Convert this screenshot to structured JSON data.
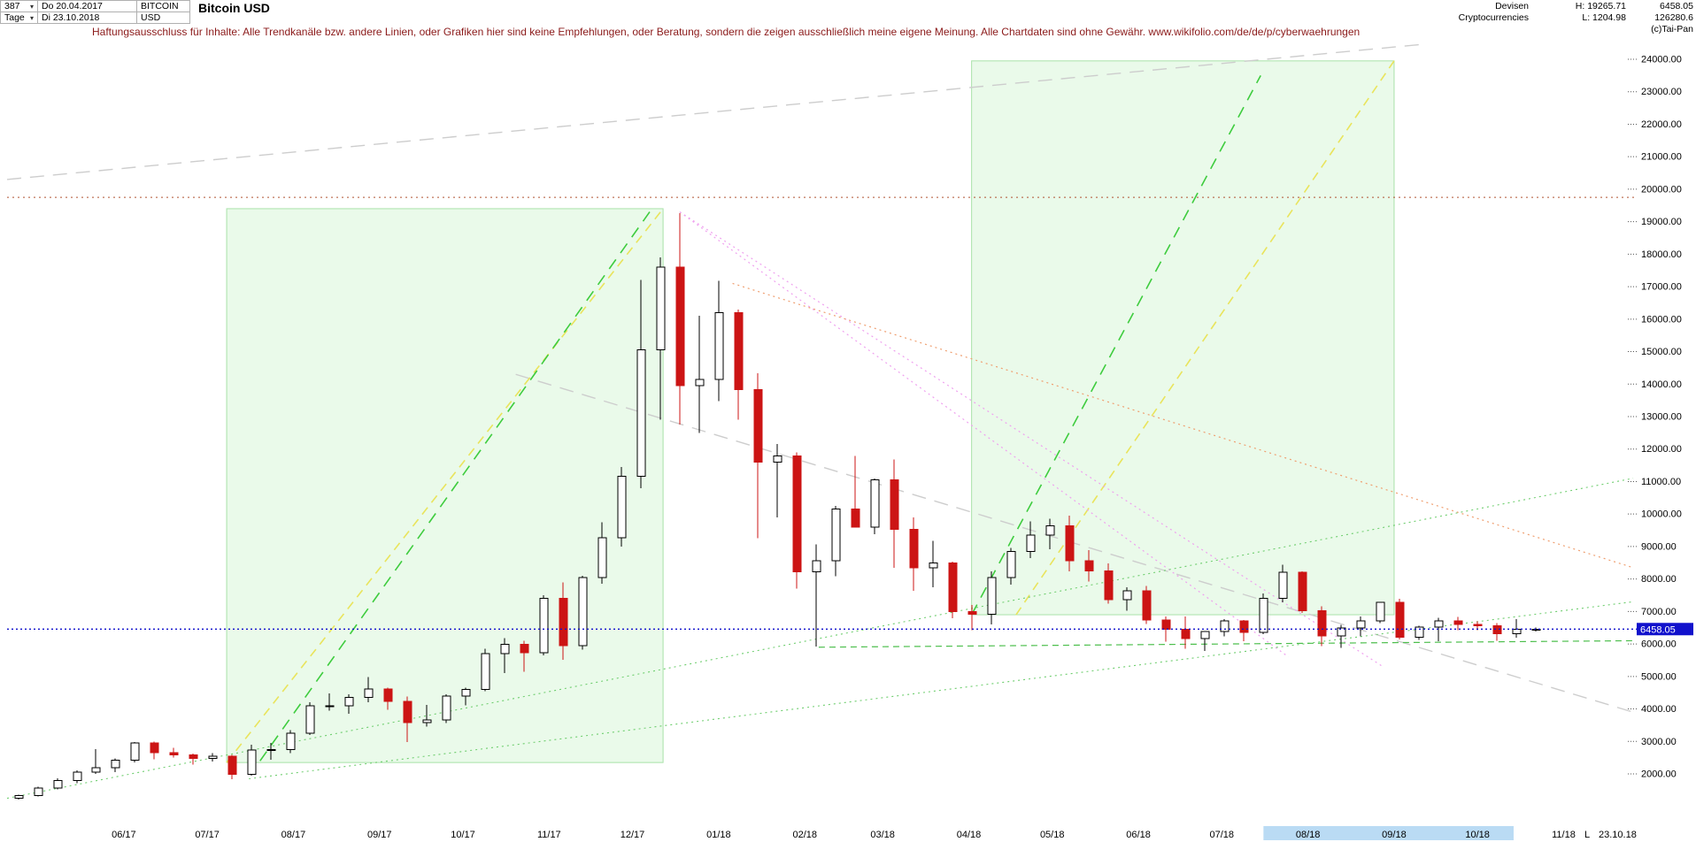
{
  "header": {
    "bars_count": "387",
    "period": "Tage",
    "date_from": "Do 20.04.2017",
    "date_to": "Di 23.10.2018",
    "symbol": "BITCOIN",
    "currency": "USD",
    "title": "Bitcoin USD",
    "category_line1": "Devisen",
    "category_line2": "Cryptocurrencies",
    "high_label": "H: 19265.71",
    "low_label": "L: 1204.98",
    "last_price": "6458.05",
    "volume": "126280.6",
    "copyright": "(c)Tai-Pan"
  },
  "icons": {
    "dropdown": "▾"
  },
  "disclaimer": "Haftungsausschluss für Inhalte: Alle Trendkanäle bzw. andere Linien, oder Grafiken hier sind keine Empfehlungen, oder Beratung, sondern die zeigen ausschließlich meine eigene Meinung. Alle Chartdaten sind ohne Gewähr.  www.wikifolio.com/de/de/p/cyberwaehrungen",
  "disclaimer_color": "#8b1a1a",
  "chart_data": {
    "type": "candlestick",
    "title": "Bitcoin USD",
    "x_start": "2017-04-20",
    "x_end": "2018-11-26",
    "ylim": [
      2000,
      24000
    ],
    "y_step": 1000,
    "period_high": 19265.71,
    "period_low": 1204.98,
    "last_price": 6458.05,
    "last_price_color": "#1111cc",
    "up_color": "#000000",
    "down_color": "#cc1414",
    "x_labels": [
      {
        "label": "06/17",
        "date": "2017-06-01"
      },
      {
        "label": "07/17",
        "date": "2017-07-01"
      },
      {
        "label": "08/17",
        "date": "2017-08-01"
      },
      {
        "label": "09/17",
        "date": "2017-09-01"
      },
      {
        "label": "10/17",
        "date": "2017-10-01"
      },
      {
        "label": "11/17",
        "date": "2017-11-01"
      },
      {
        "label": "12/17",
        "date": "2017-12-01"
      },
      {
        "label": "01/18",
        "date": "2018-01-01"
      },
      {
        "label": "02/18",
        "date": "2018-02-01"
      },
      {
        "label": "03/18",
        "date": "2018-03-01"
      },
      {
        "label": "04/18",
        "date": "2018-04-01"
      },
      {
        "label": "05/18",
        "date": "2018-05-01"
      },
      {
        "label": "06/18",
        "date": "2018-06-01"
      },
      {
        "label": "07/18",
        "date": "2018-07-01"
      },
      {
        "label": "08/18",
        "date": "2018-08-01"
      },
      {
        "label": "09/18",
        "date": "2018-09-01"
      },
      {
        "label": "10/18",
        "date": "2018-10-01"
      },
      {
        "label": "11/18",
        "date": "2018-11-01"
      }
    ],
    "columns": [
      "date",
      "open",
      "high",
      "low",
      "close"
    ],
    "candles": [
      [
        "2017-04-24",
        1250,
        1355,
        1215,
        1330
      ],
      [
        "2017-05-01",
        1330,
        1600,
        1300,
        1560
      ],
      [
        "2017-05-08",
        1560,
        1860,
        1530,
        1790
      ],
      [
        "2017-05-15",
        1790,
        2110,
        1720,
        2050
      ],
      [
        "2017-05-22",
        2050,
        2760,
        2000,
        2190
      ],
      [
        "2017-05-29",
        2190,
        2470,
        2060,
        2420
      ],
      [
        "2017-06-05",
        2420,
        2980,
        2360,
        2950
      ],
      [
        "2017-06-12",
        2950,
        3000,
        2450,
        2650
      ],
      [
        "2017-06-19",
        2650,
        2810,
        2500,
        2590
      ],
      [
        "2017-06-26",
        2590,
        2630,
        2280,
        2480
      ],
      [
        "2017-07-03",
        2480,
        2640,
        2380,
        2550
      ],
      [
        "2017-07-10",
        2550,
        2580,
        1830,
        1990
      ],
      [
        "2017-07-17",
        1990,
        2900,
        1940,
        2730
      ],
      [
        "2017-07-24",
        2730,
        2950,
        2440,
        2750
      ],
      [
        "2017-07-31",
        2750,
        3350,
        2640,
        3250
      ],
      [
        "2017-08-07",
        3250,
        4200,
        3200,
        4090
      ],
      [
        "2017-08-14",
        4090,
        4480,
        3950,
        4100
      ],
      [
        "2017-08-21",
        4100,
        4450,
        3850,
        4350
      ],
      [
        "2017-08-28",
        4350,
        4980,
        4200,
        4610
      ],
      [
        "2017-09-04",
        4610,
        4650,
        3980,
        4230
      ],
      [
        "2017-09-11",
        4230,
        4380,
        2980,
        3580
      ],
      [
        "2017-09-18",
        3580,
        4120,
        3450,
        3660
      ],
      [
        "2017-09-25",
        3660,
        4450,
        3560,
        4400
      ],
      [
        "2017-10-02",
        4400,
        4650,
        4110,
        4600
      ],
      [
        "2017-10-09",
        4600,
        5850,
        4550,
        5700
      ],
      [
        "2017-10-16",
        5700,
        6180,
        5110,
        5990
      ],
      [
        "2017-10-23",
        5990,
        6100,
        5150,
        5730
      ],
      [
        "2017-10-30",
        5730,
        7500,
        5650,
        7410
      ],
      [
        "2017-11-06",
        7410,
        7900,
        5510,
        5950
      ],
      [
        "2017-11-13",
        5950,
        8100,
        5830,
        8040
      ],
      [
        "2017-11-20",
        8040,
        9750,
        7850,
        9270
      ],
      [
        "2017-11-27",
        9270,
        11450,
        9000,
        11160
      ],
      [
        "2017-12-04",
        11160,
        17200,
        10800,
        15050
      ],
      [
        "2017-12-11",
        15050,
        17900,
        12900,
        17600
      ],
      [
        "2017-12-18",
        17600,
        19265,
        12750,
        13950
      ],
      [
        "2017-12-25",
        13950,
        16100,
        12500,
        14150
      ],
      [
        "2018-01-01",
        14150,
        17180,
        13480,
        16200
      ],
      [
        "2018-01-08",
        16200,
        16300,
        12900,
        13830
      ],
      [
        "2018-01-15",
        13830,
        14340,
        9260,
        11600
      ],
      [
        "2018-01-22",
        11600,
        12150,
        9900,
        11790
      ],
      [
        "2018-01-29",
        11790,
        11900,
        7700,
        8220
      ],
      [
        "2018-02-05",
        8220,
        9060,
        5920,
        8560
      ],
      [
        "2018-02-12",
        8560,
        10250,
        8080,
        10160
      ],
      [
        "2018-02-19",
        10160,
        11790,
        9580,
        9590
      ],
      [
        "2018-02-26",
        9590,
        11090,
        9380,
        11060
      ],
      [
        "2018-03-05",
        11060,
        11680,
        8340,
        9530
      ],
      [
        "2018-03-12",
        9530,
        9890,
        7630,
        8350
      ],
      [
        "2018-03-19",
        8350,
        9170,
        7750,
        8500
      ],
      [
        "2018-03-26",
        8500,
        8540,
        6790,
        6990
      ],
      [
        "2018-04-02",
        6990,
        7200,
        6430,
        6910
      ],
      [
        "2018-04-09",
        6910,
        8230,
        6600,
        8050
      ],
      [
        "2018-04-16",
        8050,
        8950,
        7830,
        8850
      ],
      [
        "2018-04-23",
        8850,
        9770,
        8640,
        9350
      ],
      [
        "2018-04-30",
        9350,
        9850,
        8920,
        9640
      ],
      [
        "2018-05-07",
        9640,
        9950,
        8230,
        8560
      ],
      [
        "2018-05-14",
        8560,
        8890,
        7920,
        8250
      ],
      [
        "2018-05-21",
        8250,
        8480,
        7240,
        7360
      ],
      [
        "2018-05-28",
        7360,
        7750,
        7030,
        7640
      ],
      [
        "2018-06-04",
        7640,
        7780,
        6620,
        6740
      ],
      [
        "2018-06-11",
        6740,
        6840,
        6070,
        6450
      ],
      [
        "2018-06-18",
        6450,
        6840,
        5850,
        6160
      ],
      [
        "2018-06-25",
        6160,
        6390,
        5780,
        6390
      ],
      [
        "2018-07-02",
        6390,
        6760,
        6240,
        6710
      ],
      [
        "2018-07-09",
        6710,
        6740,
        6080,
        6350
      ],
      [
        "2018-07-16",
        6350,
        7560,
        6300,
        7400
      ],
      [
        "2018-07-23",
        7400,
        8440,
        7280,
        8210
      ],
      [
        "2018-07-30",
        8210,
        8240,
        6950,
        7030
      ],
      [
        "2018-08-06",
        7030,
        7160,
        5940,
        6250
      ],
      [
        "2018-08-13",
        6250,
        6590,
        5880,
        6490
      ],
      [
        "2018-08-20",
        6490,
        6840,
        6230,
        6710
      ],
      [
        "2018-08-27",
        6710,
        7300,
        6640,
        7280
      ],
      [
        "2018-09-03",
        7280,
        7390,
        6140,
        6200
      ],
      [
        "2018-09-10",
        6200,
        6560,
        6130,
        6520
      ],
      [
        "2018-09-17",
        6520,
        6810,
        6090,
        6710
      ],
      [
        "2018-09-24",
        6710,
        6830,
        6420,
        6600
      ],
      [
        "2018-10-01",
        6600,
        6700,
        6420,
        6560
      ],
      [
        "2018-10-08",
        6560,
        6640,
        6100,
        6310
      ],
      [
        "2018-10-15",
        6310,
        6760,
        6190,
        6450
      ],
      [
        "2018-10-22",
        6450,
        6500,
        6380,
        6458
      ]
    ]
  },
  "overlays": {
    "boxes": [
      {
        "name": "trend-box-2017",
        "x1": "2017-07-08",
        "p1": 2350,
        "x2": "2017-12-12",
        "p2": 19400,
        "fill": "rgba(187,238,187,0.30)",
        "stroke": "#a8e2a8"
      },
      {
        "name": "trend-box-2018",
        "x1": "2018-04-02",
        "p1": 6900,
        "x2": "2018-09-01",
        "p2": 23950,
        "fill": "rgba(187,238,187,0.30)",
        "stroke": "#a8e2a8"
      }
    ],
    "lines": [
      {
        "name": "gray-trendline-rising",
        "color": "#cdcdcd",
        "dash": "16,10",
        "w": 1.4,
        "x1": "2017-04-20",
        "p1": 20300,
        "x2": "2018-09-10",
        "p2": 24450
      },
      {
        "name": "gray-trendline-falling",
        "color": "#cdcdcd",
        "dash": "16,10",
        "w": 1.4,
        "x1": "2017-10-20",
        "p1": 14300,
        "x2": "2018-11-26",
        "p2": 3900
      },
      {
        "name": "yellow-channel-2017",
        "color": "#e9e45c",
        "dash": "10,7",
        "w": 1.6,
        "x1": "2017-07-08",
        "p1": 2350,
        "x2": "2017-12-12",
        "p2": 19400
      },
      {
        "name": "green-channel-2017",
        "color": "#3ecc3e",
        "dash": "13,9",
        "w": 1.6,
        "x1": "2017-07-20",
        "p1": 2400,
        "x2": "2017-12-08",
        "p2": 19400
      },
      {
        "name": "yellow-channel-2018",
        "color": "#e9e45c",
        "dash": "10,7",
        "w": 1.6,
        "x1": "2018-04-18",
        "p1": 6900,
        "x2": "2018-09-01",
        "p2": 23950
      },
      {
        "name": "green-channel-2018",
        "color": "#3ecc3e",
        "dash": "13,9",
        "w": 1.6,
        "x1": "2018-04-02",
        "p1": 6900,
        "x2": "2018-07-15",
        "p2": 23500
      },
      {
        "name": "pink-fan-line-steep",
        "color": "#efa0ef",
        "dash": "2,4",
        "w": 1.2,
        "x1": "2017-12-18",
        "p1": 19300,
        "x2": "2018-07-25",
        "p2": 5600
      },
      {
        "name": "pink-fan-line-flat",
        "color": "#efa0ef",
        "dash": "2,4",
        "w": 1.2,
        "x1": "2017-12-18",
        "p1": 19300,
        "x2": "2018-08-28",
        "p2": 5300
      },
      {
        "name": "orange-resistance-line",
        "color": "#ef9f70",
        "dash": "2,4",
        "w": 1.2,
        "x1": "2018-01-06",
        "p1": 17100,
        "x2": "2018-11-26",
        "p2": 8350
      },
      {
        "name": "green-support-long",
        "color": "#6fce6f",
        "dash": "2,4",
        "w": 1.1,
        "x1": "2017-04-20",
        "p1": 1250,
        "x2": "2018-11-26",
        "p2": 11100
      },
      {
        "name": "green-support-mid",
        "color": "#6fce6f",
        "dash": "2,4",
        "w": 1.1,
        "x1": "2017-07-16",
        "p1": 1850,
        "x2": "2018-11-26",
        "p2": 7300
      },
      {
        "name": "green-support-low",
        "color": "#4dbf4d",
        "dash": "7,5",
        "w": 1.2,
        "x1": "2018-02-06",
        "p1": 5900,
        "x2": "2018-11-26",
        "p2": 6100
      }
    ],
    "hlines": [
      {
        "name": "ath-resistance-line",
        "price": 19750,
        "color": "#b05030",
        "dash": "2,4",
        "w": 1
      }
    ]
  },
  "axis": {
    "highlight": {
      "from": "2018-07-16",
      "to": "2018-10-14",
      "color": "#badbf4"
    },
    "bottom_right": {
      "prefix": "L",
      "date": "23.10.18"
    }
  }
}
